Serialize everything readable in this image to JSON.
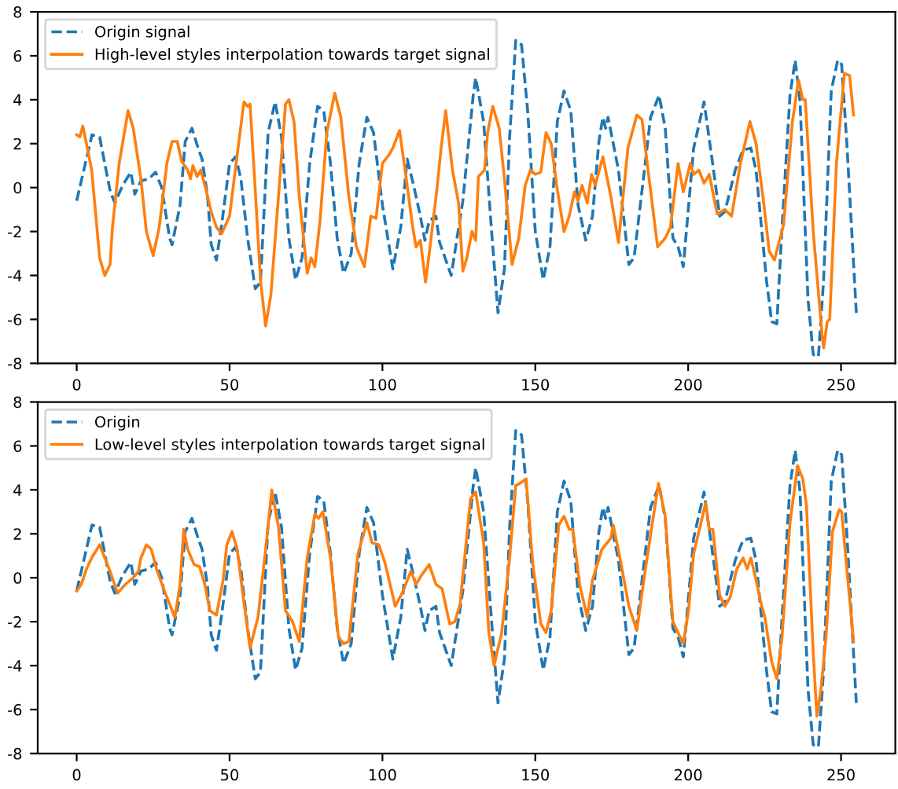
{
  "chart_data": [
    {
      "type": "line",
      "xlim": [
        -12.75,
        267.75
      ],
      "xticks": [
        0,
        50,
        100,
        150,
        200,
        250
      ],
      "ylim": [
        -8,
        8
      ],
      "yticks": [
        -8,
        -6,
        -4,
        -2,
        0,
        2,
        4,
        6,
        8
      ],
      "legend": "top left",
      "grid": false,
      "series": [
        {
          "name": "Origin signal",
          "color": "#1f77b4",
          "line_style": "dashed",
          "x": [
            0,
            5,
            7.5,
            11,
            12.5,
            15,
            17.7,
            19,
            21,
            23.6,
            25.8,
            27.8,
            30.4,
            31.2,
            33.8,
            35.5,
            37.7,
            39.7,
            41,
            42.8,
            44,
            45.7,
            47.4,
            50,
            52,
            53.7,
            55.9,
            58.4,
            60.1,
            62.6,
            64.9,
            67,
            69.4,
            71.6,
            73.7,
            76.2,
            78.8,
            80.8,
            83,
            85.2,
            87.3,
            89.8,
            92.4,
            94.9,
            97.1,
            100,
            103.4,
            106,
            108.1,
            110.2,
            112.4,
            113.9,
            115.3,
            117.5,
            118.7,
            122.5,
            126.3,
            129.7,
            130.5,
            133.1,
            135.6,
            137.8,
            139.9,
            141.6,
            143.6,
            145.5,
            147.5,
            150,
            152.6,
            154.8,
            157.2,
            159.4,
            161.6,
            164,
            166.5,
            168.7,
            170.8,
            172.1,
            173,
            173.8,
            177.2,
            180.6,
            182.3,
            185.7,
            187.7,
            190.5,
            192.5,
            195,
            196.7,
            198.4,
            201.8,
            205.2,
            207.8,
            210.3,
            212,
            215.4,
            217.9,
            220.5,
            222.2,
            225.6,
            227.3,
            229,
            230.7,
            233.3,
            235,
            236.6,
            239.2,
            240.9,
            242.6,
            244.3,
            246.8,
            248.9,
            250.2,
            251.9,
            255
          ],
          "values": [
            -0.6,
            2.4,
            2.3,
            -0.2,
            -0.7,
            0.1,
            0.7,
            -0.3,
            0.3,
            0.4,
            0.7,
            0,
            -2.3,
            -2.6,
            -0.8,
            2.1,
            2.7,
            1.8,
            1.3,
            -0.4,
            -2.6,
            -3.3,
            -1.7,
            1.1,
            1.4,
            0.4,
            -2.3,
            -4.6,
            -4.3,
            2.5,
            3.9,
            2.3,
            -2.3,
            -4.2,
            -3.2,
            1.1,
            3.7,
            3.5,
            1.1,
            -2.3,
            -3.9,
            -3.0,
            1.1,
            3.2,
            2.5,
            -0.8,
            -3.7,
            -1.8,
            1.3,
            0.1,
            -1.3,
            -2.4,
            -1.5,
            -1.3,
            -2.5,
            -4.0,
            -0.6,
            4.2,
            5.0,
            3.0,
            -1.8,
            -5.7,
            -3.7,
            2.3,
            6.7,
            6.5,
            3.5,
            -2.0,
            -4.2,
            -2.7,
            3.0,
            4.4,
            3.5,
            -0.8,
            -2.4,
            -1.3,
            2.1,
            3.2,
            2.7,
            3.2,
            0.8,
            -3.5,
            -3.2,
            0.8,
            3.2,
            4.2,
            2.7,
            -2.3,
            -2.7,
            -3.6,
            1.8,
            3.9,
            1.3,
            -1.3,
            -1.1,
            0.8,
            1.7,
            1.8,
            0.8,
            -4.2,
            -6.1,
            -6.2,
            -1.8,
            4.2,
            5.8,
            3.9,
            -5.1,
            -7.6,
            -7.7,
            -4.2,
            4.4,
            5.8,
            5.6,
            2.0,
            -5.7
          ]
        },
        {
          "name": "High-level styles interpolation towards target signal",
          "color": "#ff7f0e",
          "line_style": "solid",
          "x": [
            0,
            1,
            2,
            3.2,
            4.9,
            6.6,
            7.5,
            9.2,
            10.9,
            11.7,
            13.9,
            16.8,
            18.5,
            21,
            22.8,
            25,
            27,
            29.5,
            31.2,
            32.9,
            34.3,
            36.3,
            37.2,
            38,
            39.4,
            40.6,
            42.3,
            44,
            45.7,
            47.4,
            50,
            52.5,
            54.7,
            55.9,
            56.7,
            58.4,
            60.1,
            61.8,
            63.5,
            66,
            68.3,
            69.4,
            71.1,
            72.8,
            75.4,
            76.7,
            77.9,
            79.6,
            81.8,
            84.4,
            86.4,
            89,
            91.5,
            94.1,
            96.2,
            97.9,
            100,
            102.2,
            103.4,
            105.6,
            107.6,
            109.9,
            111,
            112.4,
            114.1,
            115.3,
            117.8,
            119.2,
            120.7,
            122.9,
            124.9,
            126.3,
            127.6,
            129.3,
            130.5,
            131.4,
            133.4,
            134.4,
            136.1,
            138.2,
            139.9,
            142.4,
            144.6,
            146.7,
            148.4,
            150,
            151.8,
            153.5,
            155.2,
            157.2,
            159.4,
            161.1,
            162.8,
            164,
            165.3,
            167,
            168.4,
            169.6,
            172.1,
            174.7,
            177.2,
            180.3,
            183.2,
            184.9,
            186.6,
            190,
            192.5,
            194.2,
            196.7,
            198.4,
            200.7,
            201.8,
            203.5,
            205.2,
            206.9,
            209.5,
            212,
            214.2,
            217.1,
            220.2,
            222.2,
            224.8,
            226.5,
            228.2,
            231.2,
            234.1,
            236.1,
            237.5,
            238.3,
            240.9,
            243.8,
            244.3,
            245.5,
            246.3,
            248.5,
            251.1,
            252.8,
            254.1
          ],
          "values": [
            2.4,
            2.3,
            2.8,
            2.0,
            0.8,
            -1.8,
            -3.2,
            -4.0,
            -3.5,
            -1.8,
            1.1,
            3.5,
            2.7,
            0.4,
            -2.0,
            -3.1,
            -1.8,
            1.1,
            2.1,
            2.1,
            1.2,
            0.8,
            0.4,
            1.0,
            0.5,
            0.8,
            -0.1,
            -1.1,
            -1.8,
            -2.1,
            -1.3,
            1.5,
            3.9,
            3.7,
            3.8,
            -0.1,
            -4.2,
            -6.3,
            -4.9,
            -0.4,
            3.8,
            4.0,
            3.0,
            -0.4,
            -3.9,
            -3.2,
            -3.6,
            -1.5,
            2.5,
            4.3,
            3.2,
            -0.4,
            -2.7,
            -3.6,
            -1.3,
            -1.4,
            1.1,
            1.5,
            1.8,
            2.6,
            0.6,
            -1.8,
            -2.7,
            -2.4,
            -4.3,
            -3.0,
            -0.1,
            1.8,
            3.5,
            0.8,
            -0.7,
            -3.8,
            -3.2,
            -2.0,
            -2.4,
            0.5,
            0.8,
            2.5,
            3.7,
            2.7,
            0.4,
            -3.5,
            -2.3,
            0.1,
            0.8,
            0.6,
            0.7,
            2.5,
            2.0,
            -0.1,
            -2.0,
            -1.3,
            -0.2,
            -0.6,
            0.1,
            -0.7,
            0.6,
            0.1,
            1.4,
            -0.4,
            -2.5,
            1.8,
            3.3,
            3.1,
            1.1,
            -2.7,
            -2.3,
            -1.8,
            1.1,
            -0.2,
            1.1,
            0.6,
            0.8,
            0.2,
            0.6,
            -1.2,
            -1.0,
            -1.3,
            1.1,
            3.0,
            2.0,
            -0.8,
            -2.9,
            -3.3,
            -1.7,
            3.0,
            4.9,
            4.0,
            4.0,
            -2.0,
            -6.7,
            -7.3,
            -6.1,
            -6.0,
            1.1,
            5.2,
            5.1,
            3.3
          ]
        }
      ]
    },
    {
      "type": "line",
      "xlim": [
        -12.75,
        267.75
      ],
      "xticks": [
        0,
        50,
        100,
        150,
        200,
        250
      ],
      "ylim": [
        -8,
        8
      ],
      "yticks": [
        -8,
        -6,
        -4,
        -2,
        0,
        2,
        4,
        6,
        8
      ],
      "legend": "top left",
      "grid": false,
      "series": [
        {
          "name": "Origin",
          "color": "#1f77b4",
          "line_style": "dashed",
          "x": [
            0,
            5,
            7.5,
            11,
            12.5,
            15,
            17.7,
            19,
            21,
            23.6,
            25.8,
            27.8,
            30.4,
            31.2,
            33.8,
            35.5,
            37.7,
            39.7,
            41,
            42.8,
            44,
            45.7,
            47.4,
            50,
            52,
            53.7,
            55.9,
            58.4,
            60.1,
            62.6,
            64.9,
            67,
            69.4,
            71.6,
            73.7,
            76.2,
            78.8,
            80.8,
            83,
            85.2,
            87.3,
            89.8,
            92.4,
            94.9,
            97.1,
            100,
            103.4,
            106,
            108.1,
            110.2,
            112.4,
            113.9,
            115.3,
            117.5,
            118.7,
            122.5,
            126.3,
            129.7,
            130.5,
            133.1,
            135.6,
            137.8,
            139.9,
            141.6,
            143.6,
            145.5,
            147.5,
            150,
            152.6,
            154.8,
            157.2,
            159.4,
            161.6,
            164,
            166.5,
            168.7,
            170.8,
            172.1,
            173,
            173.8,
            177.2,
            180.6,
            182.3,
            185.7,
            187.7,
            190.5,
            192.5,
            195,
            196.7,
            198.4,
            201.8,
            205.2,
            207.8,
            210.3,
            212,
            215.4,
            217.9,
            220.5,
            222.2,
            225.6,
            227.3,
            229,
            230.7,
            233.3,
            235,
            236.6,
            239.2,
            240.9,
            242.6,
            244.3,
            246.8,
            248.9,
            250.2,
            251.9,
            255
          ],
          "values": [
            -0.6,
            2.4,
            2.3,
            -0.2,
            -0.7,
            0.1,
            0.7,
            -0.3,
            0.3,
            0.4,
            0.7,
            0,
            -2.3,
            -2.6,
            -0.8,
            2.1,
            2.7,
            1.8,
            1.3,
            -0.4,
            -2.6,
            -3.3,
            -1.7,
            1.1,
            1.4,
            0.4,
            -2.3,
            -4.6,
            -4.3,
            2.5,
            3.9,
            2.3,
            -2.3,
            -4.2,
            -3.2,
            1.1,
            3.7,
            3.5,
            1.1,
            -2.3,
            -3.9,
            -3.0,
            1.1,
            3.2,
            2.5,
            -0.8,
            -3.7,
            -1.8,
            1.3,
            0.1,
            -1.3,
            -2.4,
            -1.5,
            -1.3,
            -2.5,
            -4.0,
            -0.6,
            4.2,
            5.0,
            3.0,
            -1.8,
            -5.7,
            -3.7,
            2.3,
            6.7,
            6.5,
            3.5,
            -2.0,
            -4.2,
            -2.7,
            3.0,
            4.4,
            3.5,
            -0.8,
            -2.4,
            -1.3,
            2.1,
            3.2,
            2.7,
            3.2,
            0.8,
            -3.5,
            -3.2,
            0.8,
            3.2,
            4.2,
            2.7,
            -2.3,
            -2.7,
            -3.6,
            1.8,
            3.9,
            1.3,
            -1.3,
            -1.1,
            0.8,
            1.7,
            1.8,
            0.8,
            -4.2,
            -6.1,
            -6.2,
            -1.8,
            4.2,
            5.8,
            3.9,
            -5.1,
            -7.6,
            -7.7,
            -4.2,
            4.4,
            5.8,
            5.6,
            2.0,
            -5.7
          ]
        },
        {
          "name": "Low-level styles interpolation towards target signal",
          "color": "#ff7f0e",
          "line_style": "solid",
          "x": [
            0,
            1.5,
            3.2,
            4.9,
            7.5,
            9.2,
            10.9,
            13.4,
            15.9,
            18.5,
            20.2,
            21,
            22.8,
            24.4,
            26.1,
            28.7,
            32.1,
            33.8,
            35,
            36.3,
            38.4,
            40.2,
            41.9,
            43.6,
            45.7,
            47.9,
            49.1,
            50.8,
            52.5,
            54.2,
            56.7,
            59.3,
            61.8,
            63.8,
            66,
            68.3,
            70.6,
            72.8,
            75.4,
            77.9,
            79.1,
            80.5,
            83,
            85.6,
            87.3,
            89,
            92,
            94.9,
            96.6,
            98.8,
            100.8,
            104.2,
            106.8,
            109.3,
            111,
            112.7,
            115.3,
            117.5,
            119.5,
            122,
            123.7,
            125.4,
            128.8,
            130.5,
            133.1,
            134.8,
            136.5,
            139,
            141.6,
            143.6,
            145,
            147,
            149.2,
            151.8,
            153.5,
            155.2,
            157.7,
            159.4,
            161.1,
            162.3,
            164.5,
            167,
            168.7,
            171.8,
            174.7,
            175.5,
            178.1,
            180.6,
            183.2,
            185.7,
            188.3,
            190.3,
            192.5,
            195,
            196.7,
            198.4,
            200.1,
            201.8,
            204.7,
            205.7,
            206.9,
            208.1,
            210.3,
            212,
            213.7,
            215.9,
            218,
            219.3,
            220.5,
            222.2,
            223.9,
            225.1,
            227.3,
            229,
            230.7,
            233.3,
            235.8,
            237.5,
            238.7,
            240.9,
            242.1,
            243.4,
            245.1,
            247.2,
            249.4,
            250.2,
            251.9,
            254.1
          ],
          "values": [
            -0.6,
            -0.3,
            0.4,
            0.9,
            1.5,
            0.9,
            0.3,
            -0.7,
            -0.3,
            0,
            0.3,
            0.9,
            1.5,
            1.3,
            0.4,
            -0.6,
            -1.8,
            -0.3,
            2.2,
            1.3,
            0.6,
            0.5,
            -0.3,
            -1.5,
            -1.7,
            -0.1,
            1.5,
            2.1,
            1.3,
            -0.6,
            -3.2,
            -1.8,
            1.3,
            4.0,
            2.3,
            -1.5,
            -2.0,
            -2.9,
            0.9,
            2.9,
            2.7,
            3.0,
            0.9,
            -2.7,
            -3.0,
            -2.9,
            1.1,
            2.5,
            1.6,
            1.5,
            0.7,
            -1.3,
            -0.6,
            0.3,
            -0.3,
            0.1,
            0.6,
            -0.3,
            -0.5,
            -2.1,
            -2.0,
            -1.2,
            3.6,
            3.9,
            1.6,
            -2.5,
            -4.0,
            -2.5,
            0.9,
            4.2,
            4.3,
            4.5,
            0.6,
            -2.1,
            -2.5,
            -1.5,
            2.4,
            2.8,
            2.2,
            2.2,
            -0.3,
            -1.8,
            -0.1,
            1.3,
            1.8,
            2.4,
            0.6,
            -1.3,
            -2.4,
            0.1,
            2.5,
            4.3,
            2.8,
            -2.0,
            -2.5,
            -3.0,
            -1.5,
            1.1,
            2.8,
            3.4,
            2.2,
            2.2,
            -0.8,
            -1.3,
            -0.9,
            0.4,
            0.9,
            0.4,
            0.9,
            -0.1,
            -1.2,
            -1.8,
            -3.8,
            -4.6,
            -2.7,
            2.5,
            5.1,
            4.5,
            3.3,
            -3.4,
            -6.3,
            -5.1,
            -2.7,
            2.1,
            3.1,
            3.0,
            0.4,
            -2.9
          ]
        }
      ]
    }
  ]
}
